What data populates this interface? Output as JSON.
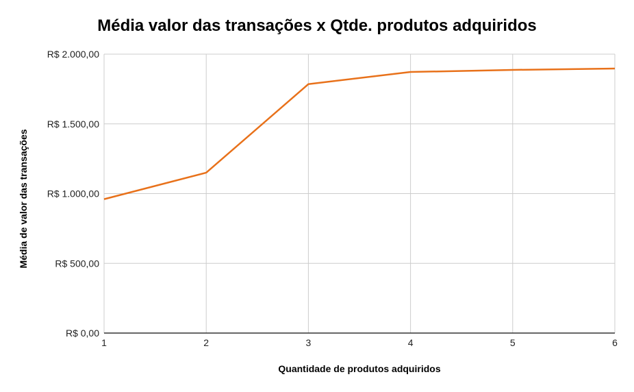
{
  "chart_data": {
    "type": "line",
    "title": "Média valor das transações x Qtde. produtos adquiridos",
    "xlabel": "Quantidade de produtos adquiridos",
    "ylabel": "Média de valor das transações",
    "x": [
      1,
      2,
      3,
      4,
      5,
      6
    ],
    "series": [
      {
        "values": [
          960,
          1150,
          1785,
          1872,
          1887,
          1897
        ]
      }
    ],
    "xlim": [
      1,
      6
    ],
    "ylim": [
      0,
      2000
    ],
    "x_ticks": [
      "1",
      "2",
      "3",
      "4",
      "5",
      "6"
    ],
    "y_ticks": [
      {
        "value": 0,
        "label": "R$ 0,00"
      },
      {
        "value": 500,
        "label": "R$ 500,00"
      },
      {
        "value": 1000,
        "label": "R$ 1.000,00"
      },
      {
        "value": 1500,
        "label": "R$ 1.500,00"
      },
      {
        "value": 2000,
        "label": "R$ 2.000,00"
      }
    ],
    "grid": true,
    "legend": "none",
    "line_color": "#e8711a",
    "grid_color": "#cccccc",
    "axis_color": "#333333"
  }
}
